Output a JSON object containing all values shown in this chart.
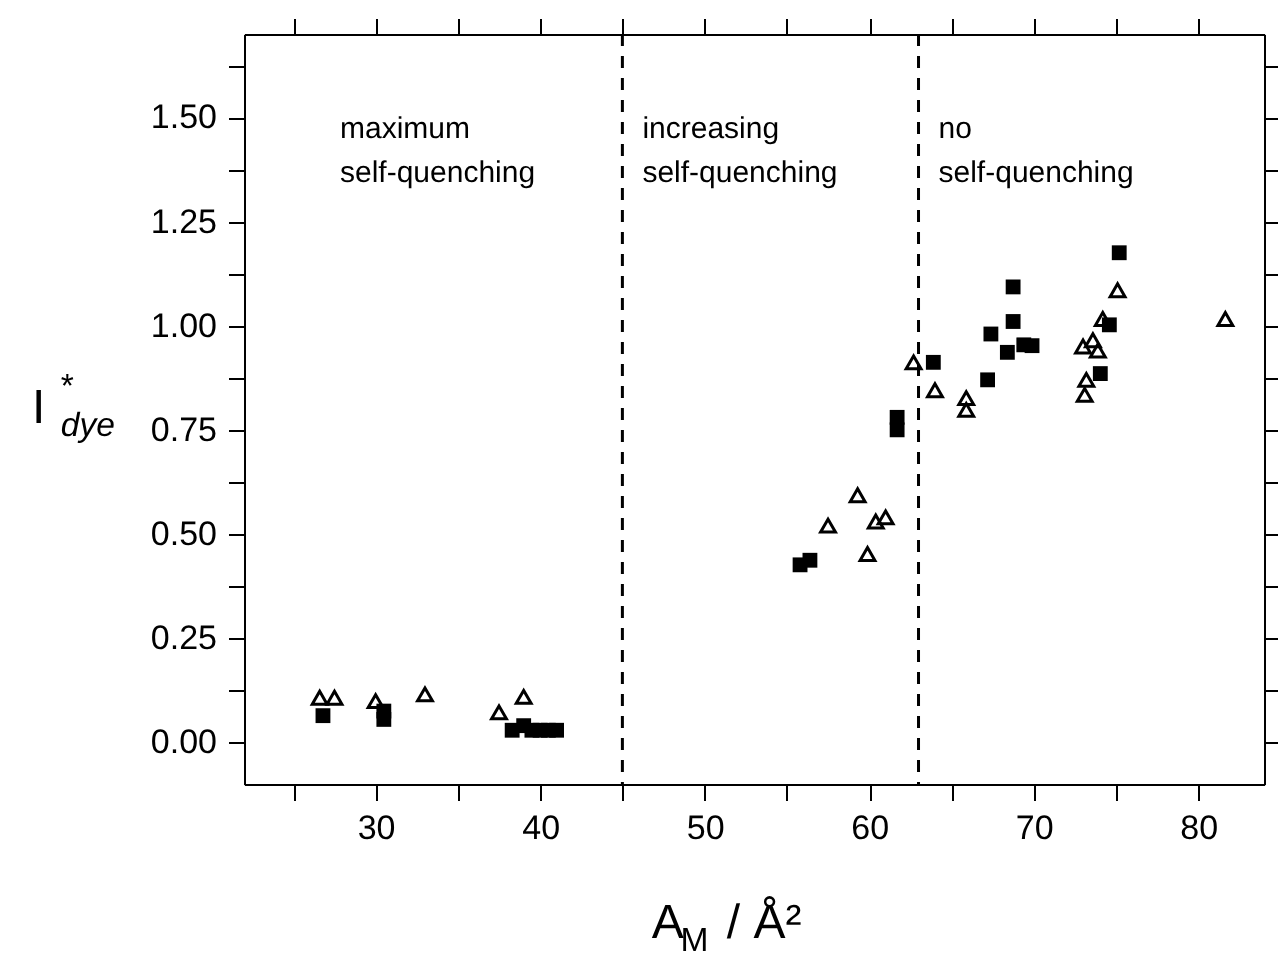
{
  "chart_data": {
    "type": "scatter",
    "xlabel": "A$_{M}$ / Å²",
    "ylabel": "I$^{*}$$_{dye}$",
    "xlim": [
      22,
      84
    ],
    "ylim": [
      -0.1,
      1.7
    ],
    "xticks": [
      {
        "value": 25,
        "label": null
      },
      30,
      {
        "value": 35,
        "label": null
      },
      40,
      {
        "value": 45,
        "label": null
      },
      50,
      {
        "value": 55,
        "label": null
      },
      60,
      {
        "value": 65,
        "label": null
      },
      70,
      {
        "value": 75,
        "label": null
      },
      80
    ],
    "yticks": [
      {
        "value": 0,
        "label": "0.00"
      },
      {
        "value": 0.125,
        "label": null
      },
      {
        "value": 0.25,
        "label": "0.25"
      },
      {
        "value": 0.375,
        "label": null
      },
      {
        "value": 0.5,
        "label": "0.50"
      },
      {
        "value": 0.625,
        "label": null
      },
      {
        "value": 0.75,
        "label": "0.75"
      },
      {
        "value": 0.875,
        "label": null
      },
      {
        "value": 1.0,
        "label": "1.00"
      },
      {
        "value": 1.125,
        "label": null
      },
      {
        "value": 1.25,
        "label": "1.25"
      },
      {
        "value": 1.375,
        "label": null
      },
      {
        "value": 1.5,
        "label": "1.50"
      },
      {
        "value": 1.625,
        "label": null
      }
    ],
    "grid": false,
    "ref_lines": [
      {
        "axis": "x",
        "value": 45,
        "line_style": "dashed",
        "color": "#000000"
      },
      {
        "axis": "x",
        "value": 63,
        "line_style": "dashed",
        "color": "#000000"
      }
    ],
    "annotations": [
      "maximum\nself-quenching",
      "increasing\nself-quenching",
      "no\nself-quenching"
    ],
    "series": [
      {
        "color": "#000000",
        "marker": "square",
        "x": [
          26.8,
          30.5,
          30.5,
          38.3,
          39.0,
          39.5,
          40.0,
          40.5,
          41.0,
          55.8,
          56.4,
          61.7,
          61.7,
          63.9,
          67.2,
          67.4,
          68.4,
          68.75,
          68.75,
          69.4,
          69.9,
          74.05,
          74.6,
          75.2
        ],
        "values": [
          0.064,
          0.055,
          0.075,
          0.029,
          0.04,
          0.029,
          0.029,
          0.029,
          0.029,
          0.426,
          0.437,
          0.75,
          0.78,
          0.912,
          0.87,
          0.98,
          0.936,
          1.01,
          1.093,
          0.954,
          0.952,
          0.885,
          1.002,
          1.175
        ]
      },
      {
        "color": "#000000",
        "marker": "triangle",
        "x": [
          26.6,
          27.5,
          30.0,
          33.0,
          37.5,
          39.0,
          57.5,
          59.3,
          59.9,
          60.4,
          61.0,
          62.7,
          64.0,
          65.9,
          65.9,
          73.0,
          73.1,
          73.2,
          73.6,
          73.9,
          74.2,
          75.1,
          81.65
        ],
        "values": [
          0.107,
          0.107,
          0.099,
          0.115,
          0.072,
          0.109,
          0.52,
          0.593,
          0.452,
          0.53,
          0.54,
          0.912,
          0.845,
          0.826,
          0.798,
          0.95,
          0.834,
          0.87,
          0.965,
          0.94,
          1.016,
          1.085,
          1.016
        ]
      }
    ]
  }
}
